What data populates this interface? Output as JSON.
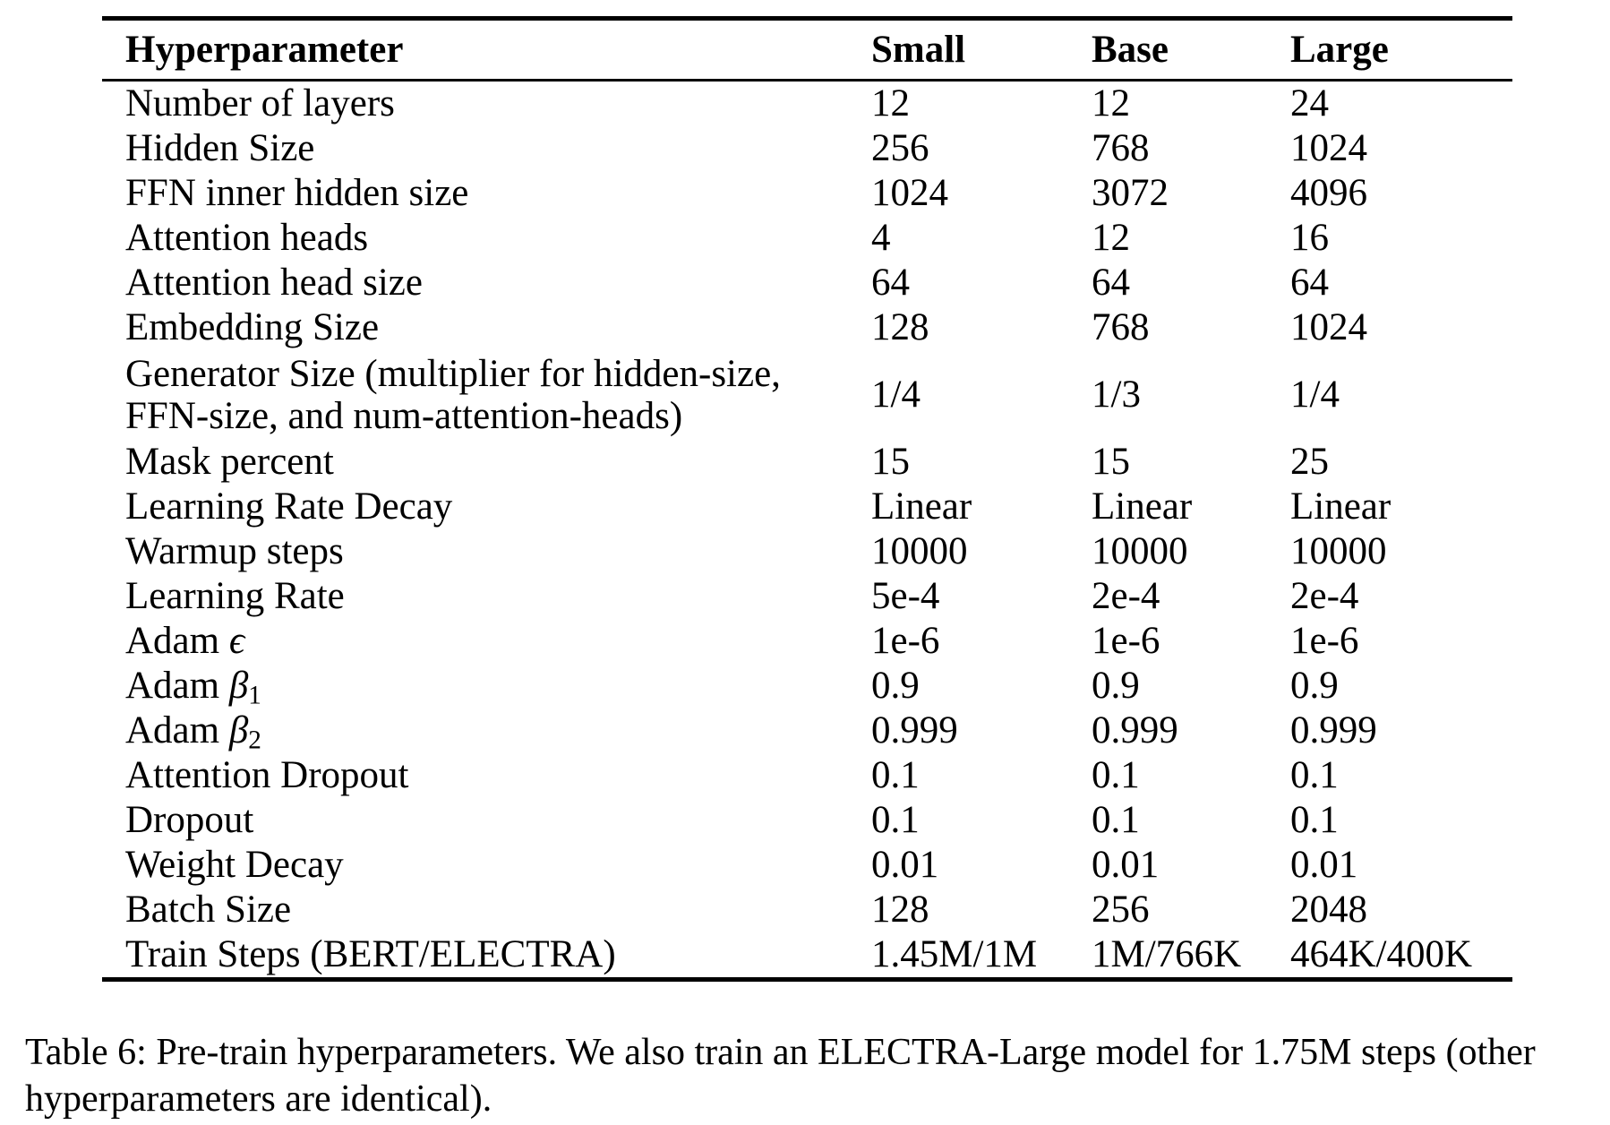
{
  "colors": {
    "text": "#000000",
    "background": "#ffffff",
    "rule": "#000000"
  },
  "table": {
    "header": {
      "hyperparameter": "Hyperparameter",
      "small": "Small",
      "base": "Base",
      "large": "Large"
    },
    "rows": [
      {
        "label": "Number of layers",
        "small": "12",
        "base": "12",
        "large": "24"
      },
      {
        "label": "Hidden Size",
        "small": "256",
        "base": "768",
        "large": "1024"
      },
      {
        "label": "FFN inner hidden size",
        "small": "1024",
        "base": "3072",
        "large": "4096"
      },
      {
        "label": "Attention heads",
        "small": "4",
        "base": "12",
        "large": "16"
      },
      {
        "label": "Attention head size",
        "small": "64",
        "base": "64",
        "large": "64"
      },
      {
        "label": "Embedding Size",
        "small": "128",
        "base": "768",
        "large": "1024"
      },
      {
        "label": "Generator Size (multiplier for hidden-size,",
        "label2": "FFN-size, and num-attention-heads)",
        "small": "1/4",
        "base": "1/3",
        "large": "1/4"
      },
      {
        "label": "Mask percent",
        "small": "15",
        "base": "15",
        "large": "25"
      },
      {
        "label": "Learning Rate Decay",
        "small": "Linear",
        "base": "Linear",
        "large": "Linear"
      },
      {
        "label": "Warmup steps",
        "small": "10000",
        "base": "10000",
        "large": "10000"
      },
      {
        "label": "Learning Rate",
        "small": "5e-4",
        "base": "2e-4",
        "large": "2e-4"
      },
      {
        "label": "Adam ",
        "math": "ϵ",
        "small": "1e-6",
        "base": "1e-6",
        "large": "1e-6"
      },
      {
        "label": "Adam ",
        "math": "β",
        "sub": "1",
        "small": "0.9",
        "base": "0.9",
        "large": "0.9"
      },
      {
        "label": "Adam ",
        "math": "β",
        "sub": "2",
        "small": "0.999",
        "base": "0.999",
        "large": "0.999"
      },
      {
        "label": "Attention Dropout",
        "small": "0.1",
        "base": "0.1",
        "large": "0.1"
      },
      {
        "label": "Dropout",
        "small": "0.1",
        "base": "0.1",
        "large": "0.1"
      },
      {
        "label": "Weight Decay",
        "small": "0.01",
        "base": "0.01",
        "large": "0.01"
      },
      {
        "label": "Batch Size",
        "small": "128",
        "base": "256",
        "large": "2048"
      },
      {
        "label": "Train Steps (BERT/ELECTRA)",
        "small": "1.45M/1M",
        "base": "1M/766K",
        "large": "464K/400K"
      }
    ]
  },
  "caption": {
    "line1": "Table 6: Pre-train hyperparameters. We also train an ELECTRA-Large model for 1.75M steps (other",
    "line2": "hyperparameters are identical)."
  }
}
